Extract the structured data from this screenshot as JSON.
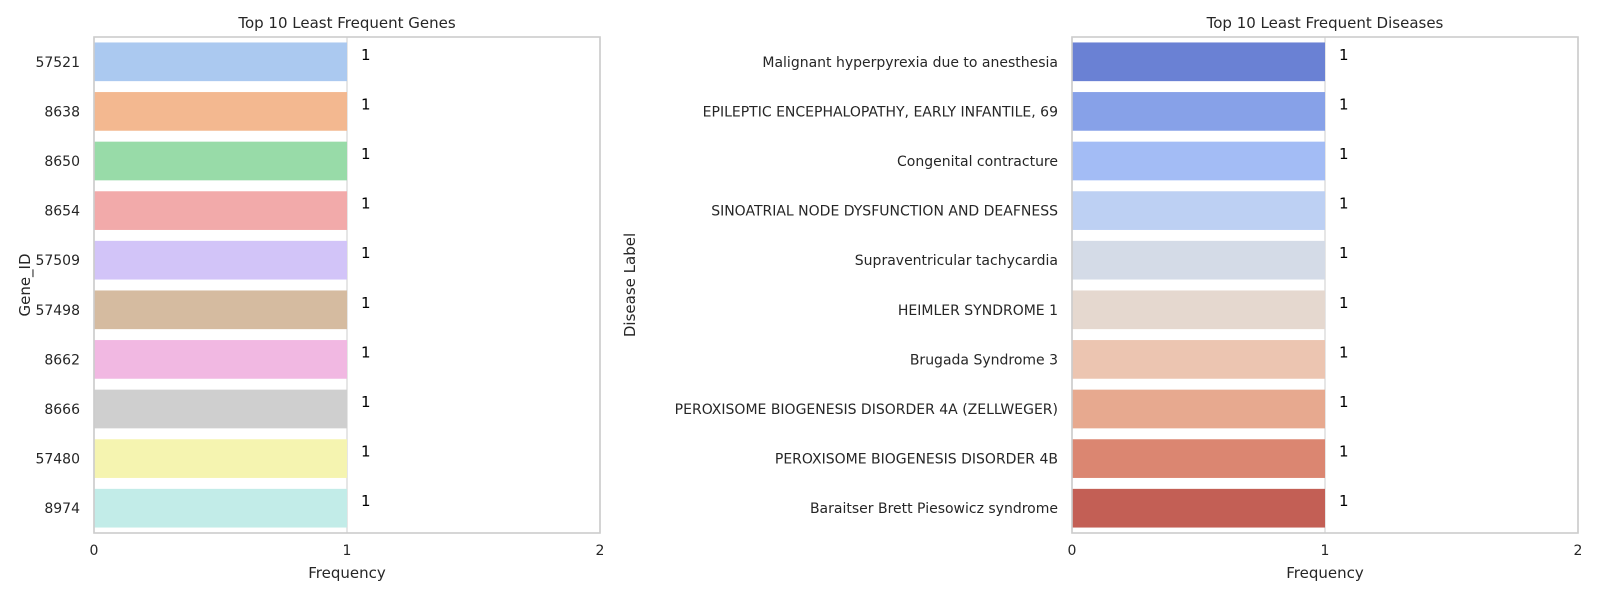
{
  "chart_data": [
    {
      "type": "bar",
      "orientation": "horizontal",
      "title": "Top 10 Least Frequent Genes",
      "xlabel": "Frequency",
      "ylabel": "Gene_ID",
      "xlim": [
        0,
        2
      ],
      "xticks": [
        "0",
        "1",
        "2"
      ],
      "grid": true,
      "categories": [
        "57521",
        "8638",
        "8650",
        "8654",
        "57509",
        "57498",
        "8662",
        "8666",
        "57480",
        "8974"
      ],
      "values": [
        1,
        1,
        1,
        1,
        1,
        1,
        1,
        1,
        1,
        1
      ],
      "value_labels": [
        "1",
        "1",
        "1",
        "1",
        "1",
        "1",
        "1",
        "1",
        "1",
        "1"
      ],
      "colors": [
        "#abc9f0",
        "#f3b890",
        "#98dba8",
        "#f2aaaa",
        "#d2c4f8",
        "#d5bba0",
        "#f1b8e2",
        "#cfcfcf",
        "#f5f4b0",
        "#c2ece8"
      ]
    },
    {
      "type": "bar",
      "orientation": "horizontal",
      "title": "Top 10 Least Frequent Diseases",
      "xlabel": "Frequency",
      "ylabel": "Disease Label",
      "xlim": [
        0,
        2
      ],
      "xticks": [
        "0",
        "1",
        "2"
      ],
      "grid": true,
      "categories": [
        "Malignant hyperpyrexia due to anesthesia",
        "EPILEPTIC ENCEPHALOPATHY, EARLY INFANTILE, 69",
        "Congenital contracture",
        "SINOATRIAL NODE DYSFUNCTION AND DEAFNESS",
        "Supraventricular tachycardia",
        "HEIMLER SYNDROME 1",
        "Brugada Syndrome 3",
        "PEROXISOME BIOGENESIS DISORDER 4A (ZELLWEGER)",
        "PEROXISOME BIOGENESIS DISORDER 4B",
        "Baraitser Brett Piesowicz syndrome"
      ],
      "values": [
        1,
        1,
        1,
        1,
        1,
        1,
        1,
        1,
        1,
        1
      ],
      "value_labels": [
        "1",
        "1",
        "1",
        "1",
        "1",
        "1",
        "1",
        "1",
        "1",
        "1"
      ],
      "colors": [
        "#6a81d4",
        "#87a1e8",
        "#a3bcf5",
        "#bdd0f3",
        "#d4dbe7",
        "#e5d8cf",
        "#ecc5b1",
        "#e7a98f",
        "#db8671",
        "#c35f55"
      ]
    }
  ]
}
